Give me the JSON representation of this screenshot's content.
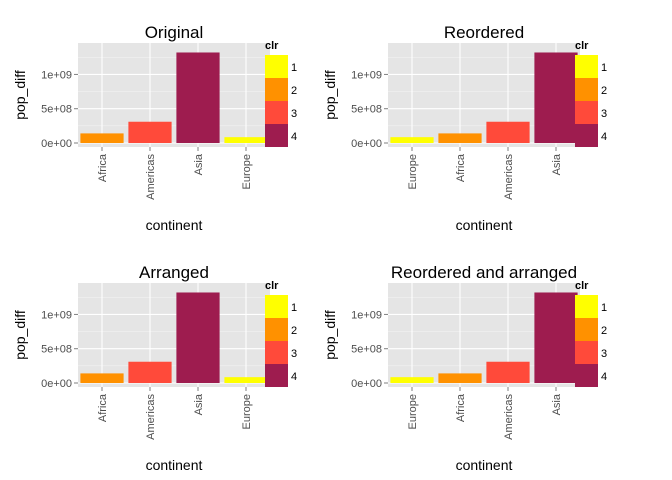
{
  "chart_data": [
    {
      "type": "bar",
      "title": "Original",
      "xlabel": "continent",
      "ylabel": "pop_diff",
      "categories": [
        "Africa",
        "Americas",
        "Asia",
        "Europe"
      ],
      "values": [
        140000000,
        310000000,
        1320000000,
        85000000
      ],
      "clr": [
        "2",
        "3",
        "4",
        "1"
      ],
      "ylim": [
        0,
        1400000000
      ],
      "yticks": [
        0,
        500000000,
        1000000000
      ],
      "ytick_labels": [
        "0e+00",
        "5e+08",
        "1e+09"
      ],
      "grid": true,
      "legend": {
        "title": "clr",
        "position": "right",
        "labels": [
          "1",
          "2",
          "3",
          "4"
        ]
      }
    },
    {
      "type": "bar",
      "title": "Reordered",
      "xlabel": "continent",
      "ylabel": "pop_diff",
      "categories": [
        "Europe",
        "Africa",
        "Americas",
        "Asia"
      ],
      "values": [
        85000000,
        140000000,
        310000000,
        1320000000
      ],
      "clr": [
        "1",
        "2",
        "3",
        "4"
      ],
      "ylim": [
        0,
        1400000000
      ],
      "yticks": [
        0,
        500000000,
        1000000000
      ],
      "ytick_labels": [
        "0e+00",
        "5e+08",
        "1e+09"
      ],
      "grid": true,
      "legend": {
        "title": "clr",
        "position": "right",
        "labels": [
          "1",
          "2",
          "3",
          "4"
        ]
      }
    },
    {
      "type": "bar",
      "title": "Arranged",
      "xlabel": "continent",
      "ylabel": "pop_diff",
      "categories": [
        "Africa",
        "Americas",
        "Asia",
        "Europe"
      ],
      "values": [
        140000000,
        310000000,
        1320000000,
        85000000
      ],
      "clr": [
        "2",
        "3",
        "4",
        "1"
      ],
      "ylim": [
        0,
        1400000000
      ],
      "yticks": [
        0,
        500000000,
        1000000000
      ],
      "ytick_labels": [
        "0e+00",
        "5e+08",
        "1e+09"
      ],
      "grid": true,
      "legend": {
        "title": "clr",
        "position": "right",
        "labels": [
          "1",
          "2",
          "3",
          "4"
        ]
      }
    },
    {
      "type": "bar",
      "title": "Reordered and arranged",
      "xlabel": "continent",
      "ylabel": "pop_diff",
      "categories": [
        "Europe",
        "Africa",
        "Americas",
        "Asia"
      ],
      "values": [
        85000000,
        140000000,
        310000000,
        1320000000
      ],
      "clr": [
        "1",
        "2",
        "3",
        "4"
      ],
      "ylim": [
        0,
        1400000000
      ],
      "yticks": [
        0,
        500000000,
        1000000000
      ],
      "ytick_labels": [
        "0e+00",
        "5e+08",
        "1e+09"
      ],
      "grid": true,
      "legend": {
        "title": "clr",
        "position": "right",
        "labels": [
          "1",
          "2",
          "3",
          "4"
        ]
      }
    }
  ],
  "colors": {
    "1": "#ffff00",
    "2": "#ff9100",
    "3": "#ff4a3a",
    "4": "#9e1c4f",
    "panel_background": "#e5e5e5",
    "grid_major": "#ffffff",
    "grid_minor": "#f2f2f2",
    "tick_text": "#4d4d4d"
  }
}
